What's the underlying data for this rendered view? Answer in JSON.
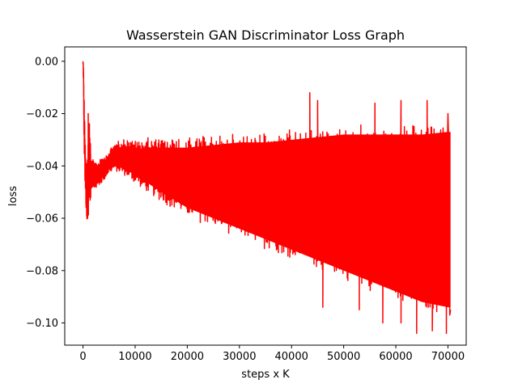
{
  "chart_data": {
    "type": "line",
    "title": "Wasserstein GAN Discriminator Loss Graph",
    "xlabel": "steps x K",
    "ylabel": "loss",
    "xlim": [
      -3500,
      73500
    ],
    "ylim": [
      -0.1085,
      0.0055
    ],
    "xticks": [
      0,
      10000,
      20000,
      30000,
      40000,
      50000,
      60000,
      70000
    ],
    "xtick_labels": [
      "0",
      "10000",
      "20000",
      "30000",
      "40000",
      "50000",
      "60000",
      "70000"
    ],
    "yticks": [
      0.0,
      -0.02,
      -0.04,
      -0.06,
      -0.08,
      -0.1
    ],
    "ytick_labels": [
      "0.00",
      "−0.02",
      "−0.04",
      "−0.06",
      "−0.08",
      "−0.10"
    ],
    "grid": false,
    "series": [
      {
        "color": "#ff0000",
        "envelope_x": [
          0,
          100,
          200,
          400,
          600,
          800,
          1000,
          1200,
          1500,
          2000,
          3000,
          4000,
          5000,
          6000,
          8000,
          10000,
          12000,
          15000,
          20000,
          25000,
          30000,
          35000,
          40000,
          45000,
          50000,
          55000,
          60000,
          65000,
          70000
        ],
        "envelope_upper": [
          0.0,
          -0.002,
          -0.01,
          -0.03,
          -0.04,
          -0.035,
          -0.03,
          -0.02,
          -0.035,
          -0.037,
          -0.038,
          -0.036,
          -0.034,
          -0.031,
          -0.029,
          -0.03,
          -0.029,
          -0.029,
          -0.029,
          -0.028,
          -0.027,
          -0.027,
          -0.026,
          -0.025,
          -0.024,
          -0.024,
          -0.024,
          -0.024,
          -0.023
        ],
        "envelope_lower": [
          0.0,
          -0.01,
          -0.035,
          -0.05,
          -0.058,
          -0.061,
          -0.06,
          -0.055,
          -0.052,
          -0.05,
          -0.048,
          -0.046,
          -0.043,
          -0.042,
          -0.044,
          -0.047,
          -0.05,
          -0.054,
          -0.06,
          -0.064,
          -0.068,
          -0.072,
          -0.076,
          -0.08,
          -0.084,
          -0.088,
          -0.092,
          -0.096,
          -0.098
        ],
        "spikes_up": [
          [
            1000,
            -0.02
          ],
          [
            43500,
            -0.012
          ],
          [
            45000,
            -0.015
          ],
          [
            56000,
            -0.016
          ],
          [
            61000,
            -0.015
          ],
          [
            66000,
            -0.015
          ],
          [
            70000,
            -0.02
          ]
        ],
        "spikes_down": [
          [
            46000,
            -0.094
          ],
          [
            53000,
            -0.095
          ],
          [
            57500,
            -0.1
          ],
          [
            61000,
            -0.1
          ],
          [
            64000,
            -0.104
          ],
          [
            67000,
            -0.103
          ],
          [
            69700,
            -0.104
          ]
        ],
        "end_x": 70500
      }
    ]
  }
}
